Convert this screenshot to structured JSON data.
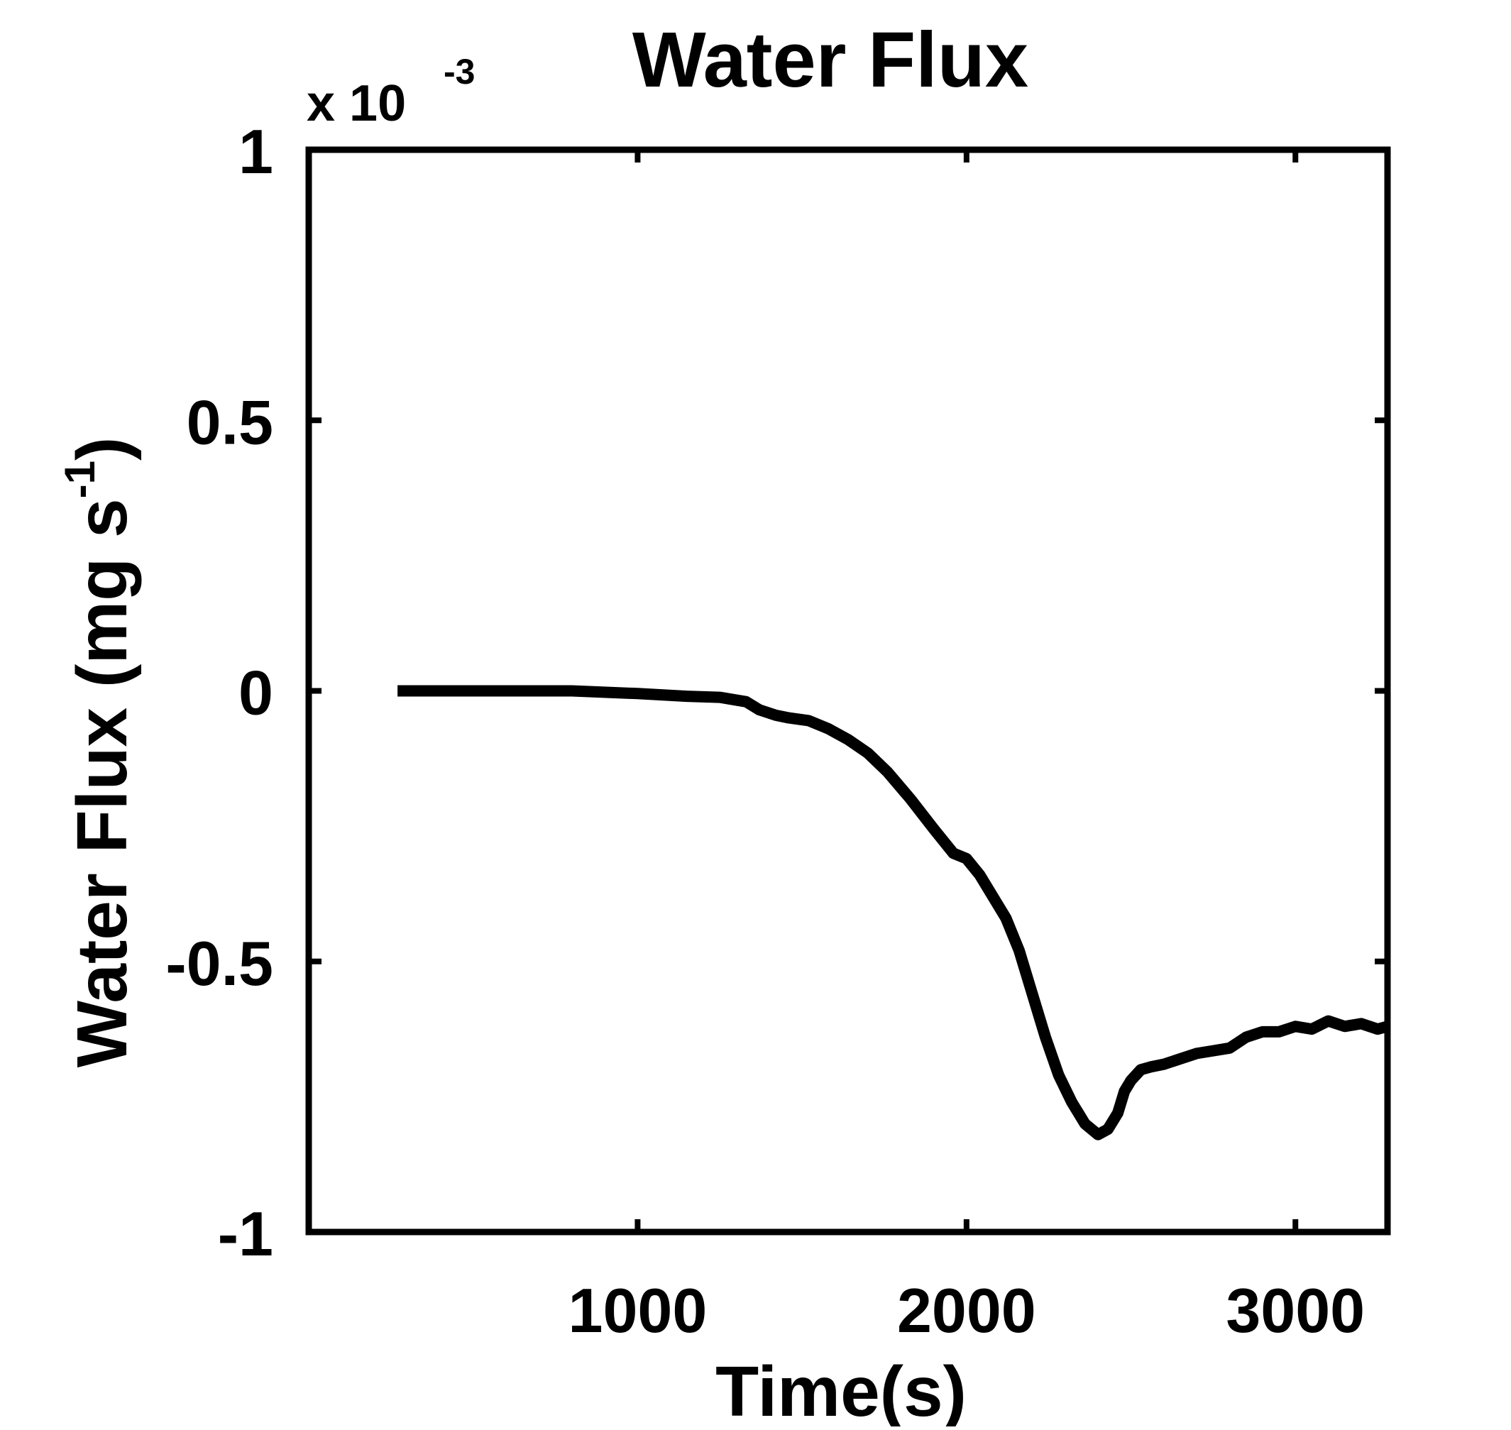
{
  "chart_data": {
    "type": "line",
    "title": "Water Flux",
    "xlabel": "Time(s)",
    "ylabel": "Water Flux (mg s",
    "ylabel_superscript": "-1",
    "ylabel_close": ")",
    "exponent_base": "x 10",
    "exponent_power": "-3",
    "xlim": [
      0,
      3280
    ],
    "ylim": [
      -1,
      1
    ],
    "xticks": [
      1000,
      2000,
      3000
    ],
    "xtick_labels": [
      "1000",
      "2000",
      "3000"
    ],
    "yticks": [
      1,
      0.5,
      0,
      -0.5,
      -1
    ],
    "ytick_labels": [
      "1",
      "0.5",
      "0",
      "-0.5",
      "-1"
    ],
    "grid": false,
    "line_color": "#000000",
    "series": [
      {
        "x": [
          270,
          400,
          600,
          800,
          1000,
          1150,
          1250,
          1330,
          1370,
          1420,
          1460,
          1520,
          1580,
          1640,
          1700,
          1760,
          1830,
          1900,
          1960,
          2000,
          2040,
          2080,
          2120,
          2160,
          2200,
          2240,
          2280,
          2320,
          2360,
          2400,
          2430,
          2460,
          2480,
          2500,
          2530,
          2560,
          2600,
          2650,
          2700,
          2750,
          2800,
          2850,
          2900,
          2950,
          3000,
          3050,
          3100,
          3150,
          3200,
          3250,
          3280
        ],
        "y": [
          0.0,
          0.0,
          0.0,
          0.0,
          -0.005,
          -0.01,
          -0.012,
          -0.02,
          -0.035,
          -0.045,
          -0.05,
          -0.055,
          -0.07,
          -0.09,
          -0.115,
          -0.15,
          -0.2,
          -0.255,
          -0.3,
          -0.31,
          -0.34,
          -0.38,
          -0.42,
          -0.48,
          -0.56,
          -0.64,
          -0.71,
          -0.76,
          -0.8,
          -0.82,
          -0.81,
          -0.78,
          -0.74,
          -0.72,
          -0.7,
          -0.695,
          -0.69,
          -0.68,
          -0.67,
          -0.665,
          -0.66,
          -0.64,
          -0.63,
          -0.63,
          -0.62,
          -0.625,
          -0.61,
          -0.62,
          -0.615,
          -0.625,
          -0.62
        ]
      }
    ]
  }
}
